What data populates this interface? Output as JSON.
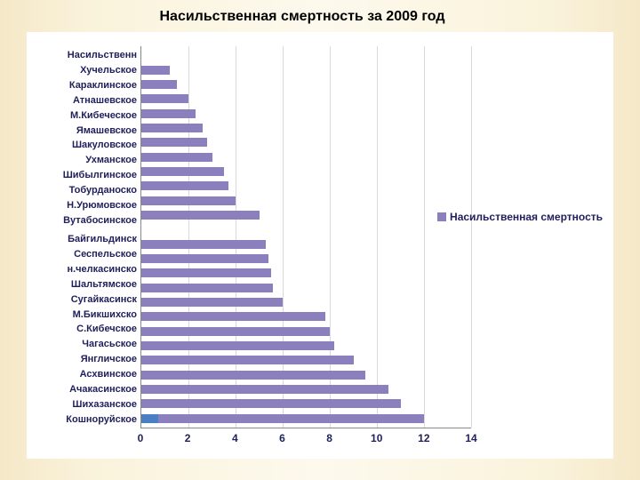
{
  "title": "Насильственная смертность за 2009 год",
  "chart": {
    "type": "bar-horizontal",
    "xlim": [
      0,
      14
    ],
    "xtick_step": 2,
    "xticks": [
      0,
      2,
      4,
      6,
      8,
      10,
      12,
      14
    ],
    "grid_color": "#d9d9d9",
    "axis_color": "#888888",
    "background_color": "#ffffff",
    "label_color": "#1f1f5c",
    "label_fontsize": 11,
    "bar_color_primary": "#8b80bd",
    "bar_color_secondary": "#4a7fc4",
    "categories": [
      {
        "label": "Насильственн",
        "value": 0
      },
      {
        "label": "Хучельское",
        "value": 1.2
      },
      {
        "label": "Караклинское",
        "value": 1.5
      },
      {
        "label": "Атнашевское",
        "value": 2.0
      },
      {
        "label": "М.Кибеческое",
        "value": 2.3
      },
      {
        "label": "Ямашевское",
        "value": 2.6
      },
      {
        "label": "Шакуловское",
        "value": 2.8
      },
      {
        "label": "Ухманское",
        "value": 3.0
      },
      {
        "label": "Шибылгинское",
        "value": 3.5
      },
      {
        "label": "Тобурданоско",
        "value": 3.7
      },
      {
        "label": "Н.Урюмовское",
        "value": 4.0
      },
      {
        "label": "Вутабосинское",
        "value": 5.0
      },
      {
        "label": "",
        "value": null
      },
      {
        "label": "Байгильдинск",
        "value": 5.3
      },
      {
        "label": "Сеспельское",
        "value": 5.4
      },
      {
        "label": "н.челкасинско",
        "value": 5.5
      },
      {
        "label": "Шальтямское",
        "value": 5.6
      },
      {
        "label": "Сугайкасинск",
        "value": 6.0
      },
      {
        "label": "М.Бикшихско",
        "value": 7.8
      },
      {
        "label": "С.Кибечское",
        "value": 8.0
      },
      {
        "label": "Чагасьское",
        "value": 8.2
      },
      {
        "label": "Янгличское",
        "value": 9.0
      },
      {
        "label": "Асхвинское",
        "value": 9.5
      },
      {
        "label": "Ачакасинское",
        "value": 10.5
      },
      {
        "label": "Шихазанское",
        "value": 11.0
      },
      {
        "label": "Кошноруйское",
        "value": 12.0,
        "secondary": 0.7
      }
    ],
    "legend": {
      "label": "Насильственная смертность",
      "swatch_color": "#8b80bd"
    }
  }
}
